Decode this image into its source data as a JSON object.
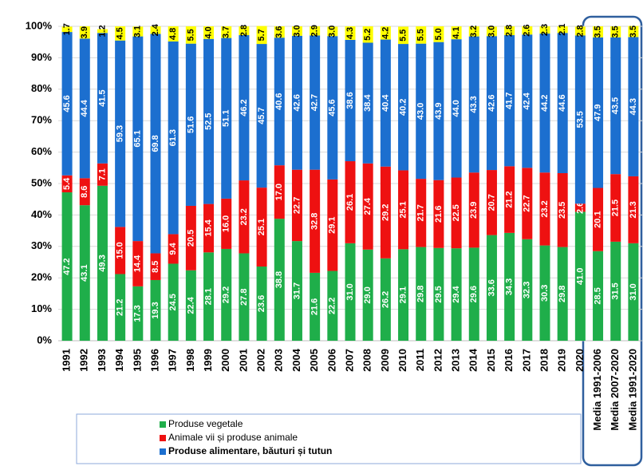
{
  "chart_data": {
    "type": "stacked_bar",
    "categories": [
      "1991",
      "1992",
      "1993",
      "1994",
      "1995",
      "1996",
      "1997",
      "1998",
      "1999",
      "2000",
      "2001",
      "2002",
      "2003",
      "2004",
      "2005",
      "2006",
      "2007",
      "2008",
      "2009",
      "2010",
      "2011",
      "2012",
      "2013",
      "2014",
      "2015",
      "2016",
      "2017",
      "2018",
      "2019",
      "2020",
      "Media 1991-2006",
      "Media 2007-2020",
      "Media 1991-2020"
    ],
    "series": [
      {
        "name": "Produse vegetale",
        "color": "#1fae4a",
        "label_color": "#ffffff",
        "values": [
          47.2,
          43.1,
          49.3,
          21.2,
          17.3,
          19.3,
          24.5,
          22.4,
          28.1,
          29.2,
          27.8,
          23.6,
          38.8,
          31.7,
          21.6,
          22.2,
          31.0,
          29.0,
          26.2,
          29.1,
          29.8,
          29.5,
          29.4,
          29.6,
          33.6,
          34.3,
          32.3,
          30.3,
          29.8,
          41.0,
          28.5,
          31.5,
          31.0
        ],
        "value_labels": [
          "47.2",
          "43.1",
          "49.3",
          "21.2",
          "17.3",
          "19.3",
          "24.5",
          "22.4",
          "28.1",
          "29.2",
          "27.8",
          "23.6",
          "38.8",
          "31.7",
          "21.6",
          "22.2",
          "31.0",
          "29.0",
          "26.2",
          "29.1",
          "29.8",
          "29.5",
          "29.4",
          "29.6",
          "33.6",
          "34.3",
          "32.3",
          "30.3",
          "29.8",
          "41.0",
          "28.5",
          "31.5",
          "31.0"
        ]
      },
      {
        "name": "Animale vii și produse animale",
        "color": "#ee1111",
        "label_color": "#ffffff",
        "values": [
          5.4,
          8.6,
          7.1,
          15.0,
          14.4,
          8.5,
          9.4,
          20.5,
          15.4,
          16.0,
          23.2,
          25.1,
          17.0,
          22.7,
          32.8,
          29.1,
          26.1,
          27.4,
          29.2,
          25.1,
          21.7,
          21.6,
          22.5,
          23.9,
          20.7,
          21.2,
          22.7,
          23.2,
          23.5,
          2.6,
          20.1,
          21.5,
          21.3
        ],
        "value_labels": [
          "5.4",
          "8.6",
          "7.1",
          "15.0",
          "14.4",
          "8.5",
          "9.4",
          "20.5",
          "15.4",
          "16.0",
          "23.2",
          "25.1",
          "17.0",
          "22.7",
          "32.8",
          "29.1",
          "26.1",
          "27.4",
          "29.2",
          "25.1",
          "21.7",
          "21.6",
          "22.5",
          "23.9",
          "20.7",
          "21.2",
          "22.7",
          "23.2",
          "23.5",
          "2.6",
          "20.1",
          "21.5",
          "21.3"
        ]
      },
      {
        "name": "Produse alimentare, băuturi și tutun",
        "color": "#1c6fcf",
        "label_color": "#ffffff",
        "values": [
          45.6,
          44.4,
          41.5,
          59.3,
          65.1,
          69.8,
          61.3,
          51.6,
          52.5,
          51.1,
          46.2,
          45.7,
          40.6,
          42.6,
          42.7,
          45.6,
          38.6,
          38.4,
          40.4,
          40.2,
          43.0,
          43.9,
          44.0,
          43.3,
          42.6,
          41.7,
          42.4,
          44.2,
          44.6,
          53.5,
          47.9,
          43.5,
          44.3
        ],
        "value_labels": [
          "45.6",
          "44.4",
          "41.5",
          "59.3",
          "65.1",
          "69.8",
          "61.3",
          "51.6",
          "52.5",
          "51.1",
          "46.2",
          "45.7",
          "40.6",
          "42.6",
          "42.7",
          "45.6",
          "38.6",
          "38.4",
          "40.4",
          "40.2",
          "43.0",
          "43.9",
          "44.0",
          "43.3",
          "42.6",
          "41.7",
          "42.4",
          "44.2",
          "44.6",
          "53.5",
          "47.9",
          "43.5",
          "44.3"
        ]
      },
      {
        "color": "#ffff00",
        "label_color": "#000000",
        "values": [
          1.7,
          3.9,
          1.2,
          4.5,
          3.1,
          2.4,
          4.8,
          5.5,
          4.0,
          3.7,
          2.8,
          5.7,
          3.6,
          3.0,
          2.9,
          3.0,
          4.3,
          5.2,
          4.2,
          5.5,
          5.5,
          5.0,
          4.1,
          3.2,
          3.0,
          2.8,
          2.6,
          2.3,
          2.1,
          2.8,
          3.5,
          3.5,
          3.5
        ],
        "value_labels": [
          "1.7",
          "3.9",
          "1.2",
          "4.5",
          "3.1",
          "2.4",
          "4.8",
          "5.5",
          "4.0",
          "3.7",
          "2.8",
          "5.7",
          "3.6",
          "3.0",
          "2.9",
          "3.0",
          "4.3",
          "5.2",
          "4.2",
          "5.5",
          "5.5",
          "5.0",
          "4.1",
          "3.2",
          "3.0",
          "2.8",
          "2.6",
          "2.3",
          "2.1",
          "2.8",
          "3.5",
          "3.5",
          "3.5"
        ]
      }
    ],
    "ylim": [
      0,
      100
    ],
    "yticks": [
      {
        "value": 0,
        "label": "0%"
      },
      {
        "value": 10,
        "label": "10%"
      },
      {
        "value": 20,
        "label": "20%"
      },
      {
        "value": 30,
        "label": "30%"
      },
      {
        "value": 40,
        "label": "40%"
      },
      {
        "value": 50,
        "label": "50%"
      },
      {
        "value": 60,
        "label": "60%"
      },
      {
        "value": 70,
        "label": "70%"
      },
      {
        "value": 80,
        "label": "80%"
      },
      {
        "value": 90,
        "label": "90%"
      },
      {
        "value": 100,
        "label": "100%"
      }
    ],
    "grid": true
  }
}
